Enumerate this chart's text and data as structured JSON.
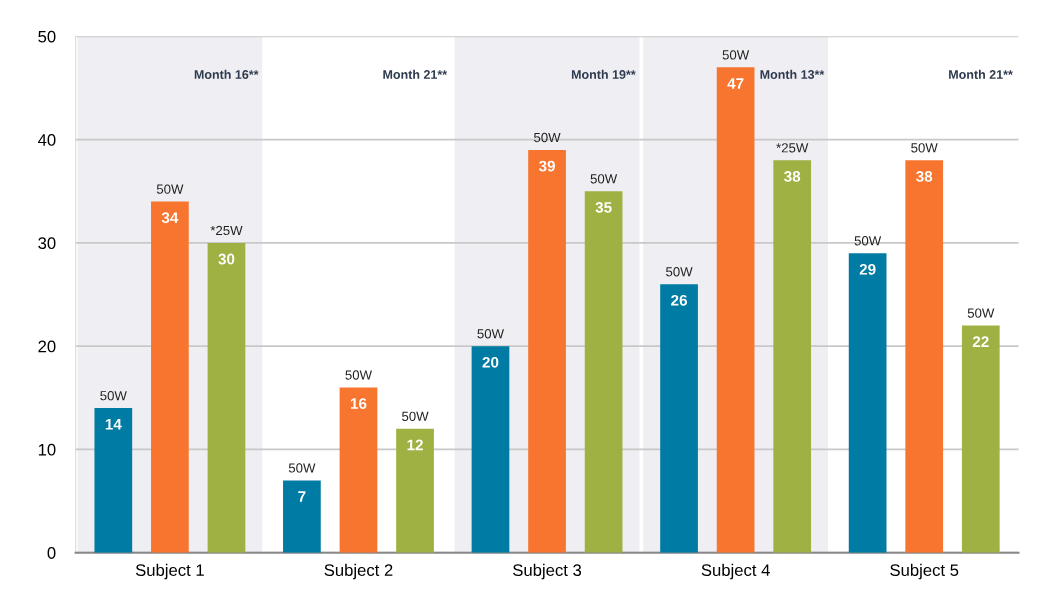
{
  "chart_data": {
    "type": "bar",
    "categories": [
      "Subject 1",
      "Subject 2",
      "Subject 3",
      "Subject 4",
      "Subject 5"
    ],
    "series": [
      {
        "color": "#007ba4",
        "values": [
          14,
          7,
          20,
          26,
          29
        ]
      },
      {
        "color": "#f7752f",
        "values": [
          34,
          16,
          39,
          47,
          38
        ]
      },
      {
        "color": "#9eb142",
        "values": [
          30,
          12,
          35,
          38,
          22
        ]
      }
    ],
    "ylim": [
      0,
      50
    ],
    "yticks": [
      0,
      10,
      20,
      30,
      40,
      50
    ],
    "grid": "y",
    "data_labels": true,
    "legend": false,
    "bands": [
      {
        "axis": "x",
        "from": "Subject 1",
        "to": "Subject 1",
        "color": "#efeff3"
      },
      {
        "axis": "x",
        "from": "Subject 3",
        "to": "Subject 3",
        "color": "#efeff3"
      },
      {
        "axis": "x",
        "from": "Subject 4",
        "to": "Subject 4",
        "color": "#efeff3"
      }
    ],
    "annotations": [
      "Month 16**",
      "Month 21**",
      "Month 19**",
      "Month 13**",
      "Month 21**",
      "50W",
      "50W",
      "*25W",
      "50W",
      "50W",
      "50W",
      "50W",
      "50W",
      "50W",
      "50W",
      "50W",
      "*25W",
      "50W",
      "50W",
      "50W"
    ]
  }
}
